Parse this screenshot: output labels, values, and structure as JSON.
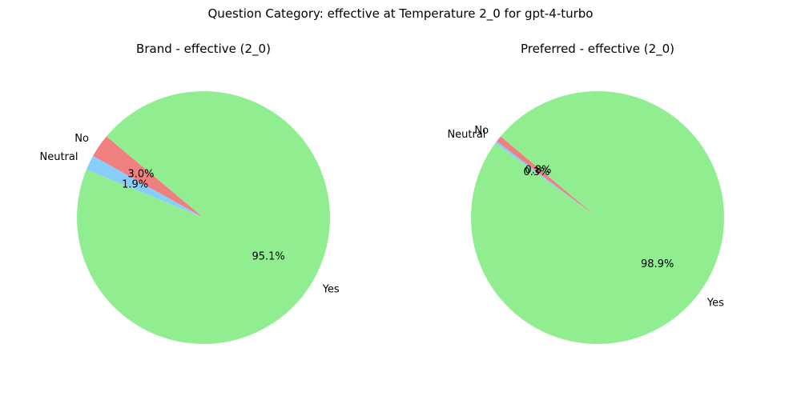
{
  "figure": {
    "title": "Question Category: effective at Temperature 2_0 for gpt-4-turbo"
  },
  "chart_data": [
    {
      "type": "pie",
      "title": "Brand - effective (2_0)",
      "start_angle_deg": 140,
      "direction": "counterclockwise",
      "slices": [
        {
          "label": "No",
          "value": 3.0,
          "pct_label": "3.0%",
          "color": "#f08080"
        },
        {
          "label": "Neutral",
          "value": 1.9,
          "pct_label": "1.9%",
          "color": "#87cefa"
        },
        {
          "label": "Yes",
          "value": 95.1,
          "pct_label": "95.1%",
          "color": "#90ee90"
        }
      ]
    },
    {
      "type": "pie",
      "title": "Preferred - effective (2_0)",
      "start_angle_deg": 140,
      "direction": "counterclockwise",
      "slices": [
        {
          "label": "No",
          "value": 0.8,
          "pct_label": "0.8%",
          "color": "#f08080"
        },
        {
          "label": "Neutral",
          "value": 0.3,
          "pct_label": "0.3%",
          "color": "#87cefa"
        },
        {
          "label": "Yes",
          "value": 98.9,
          "pct_label": "98.9%",
          "color": "#90ee90"
        }
      ]
    }
  ]
}
